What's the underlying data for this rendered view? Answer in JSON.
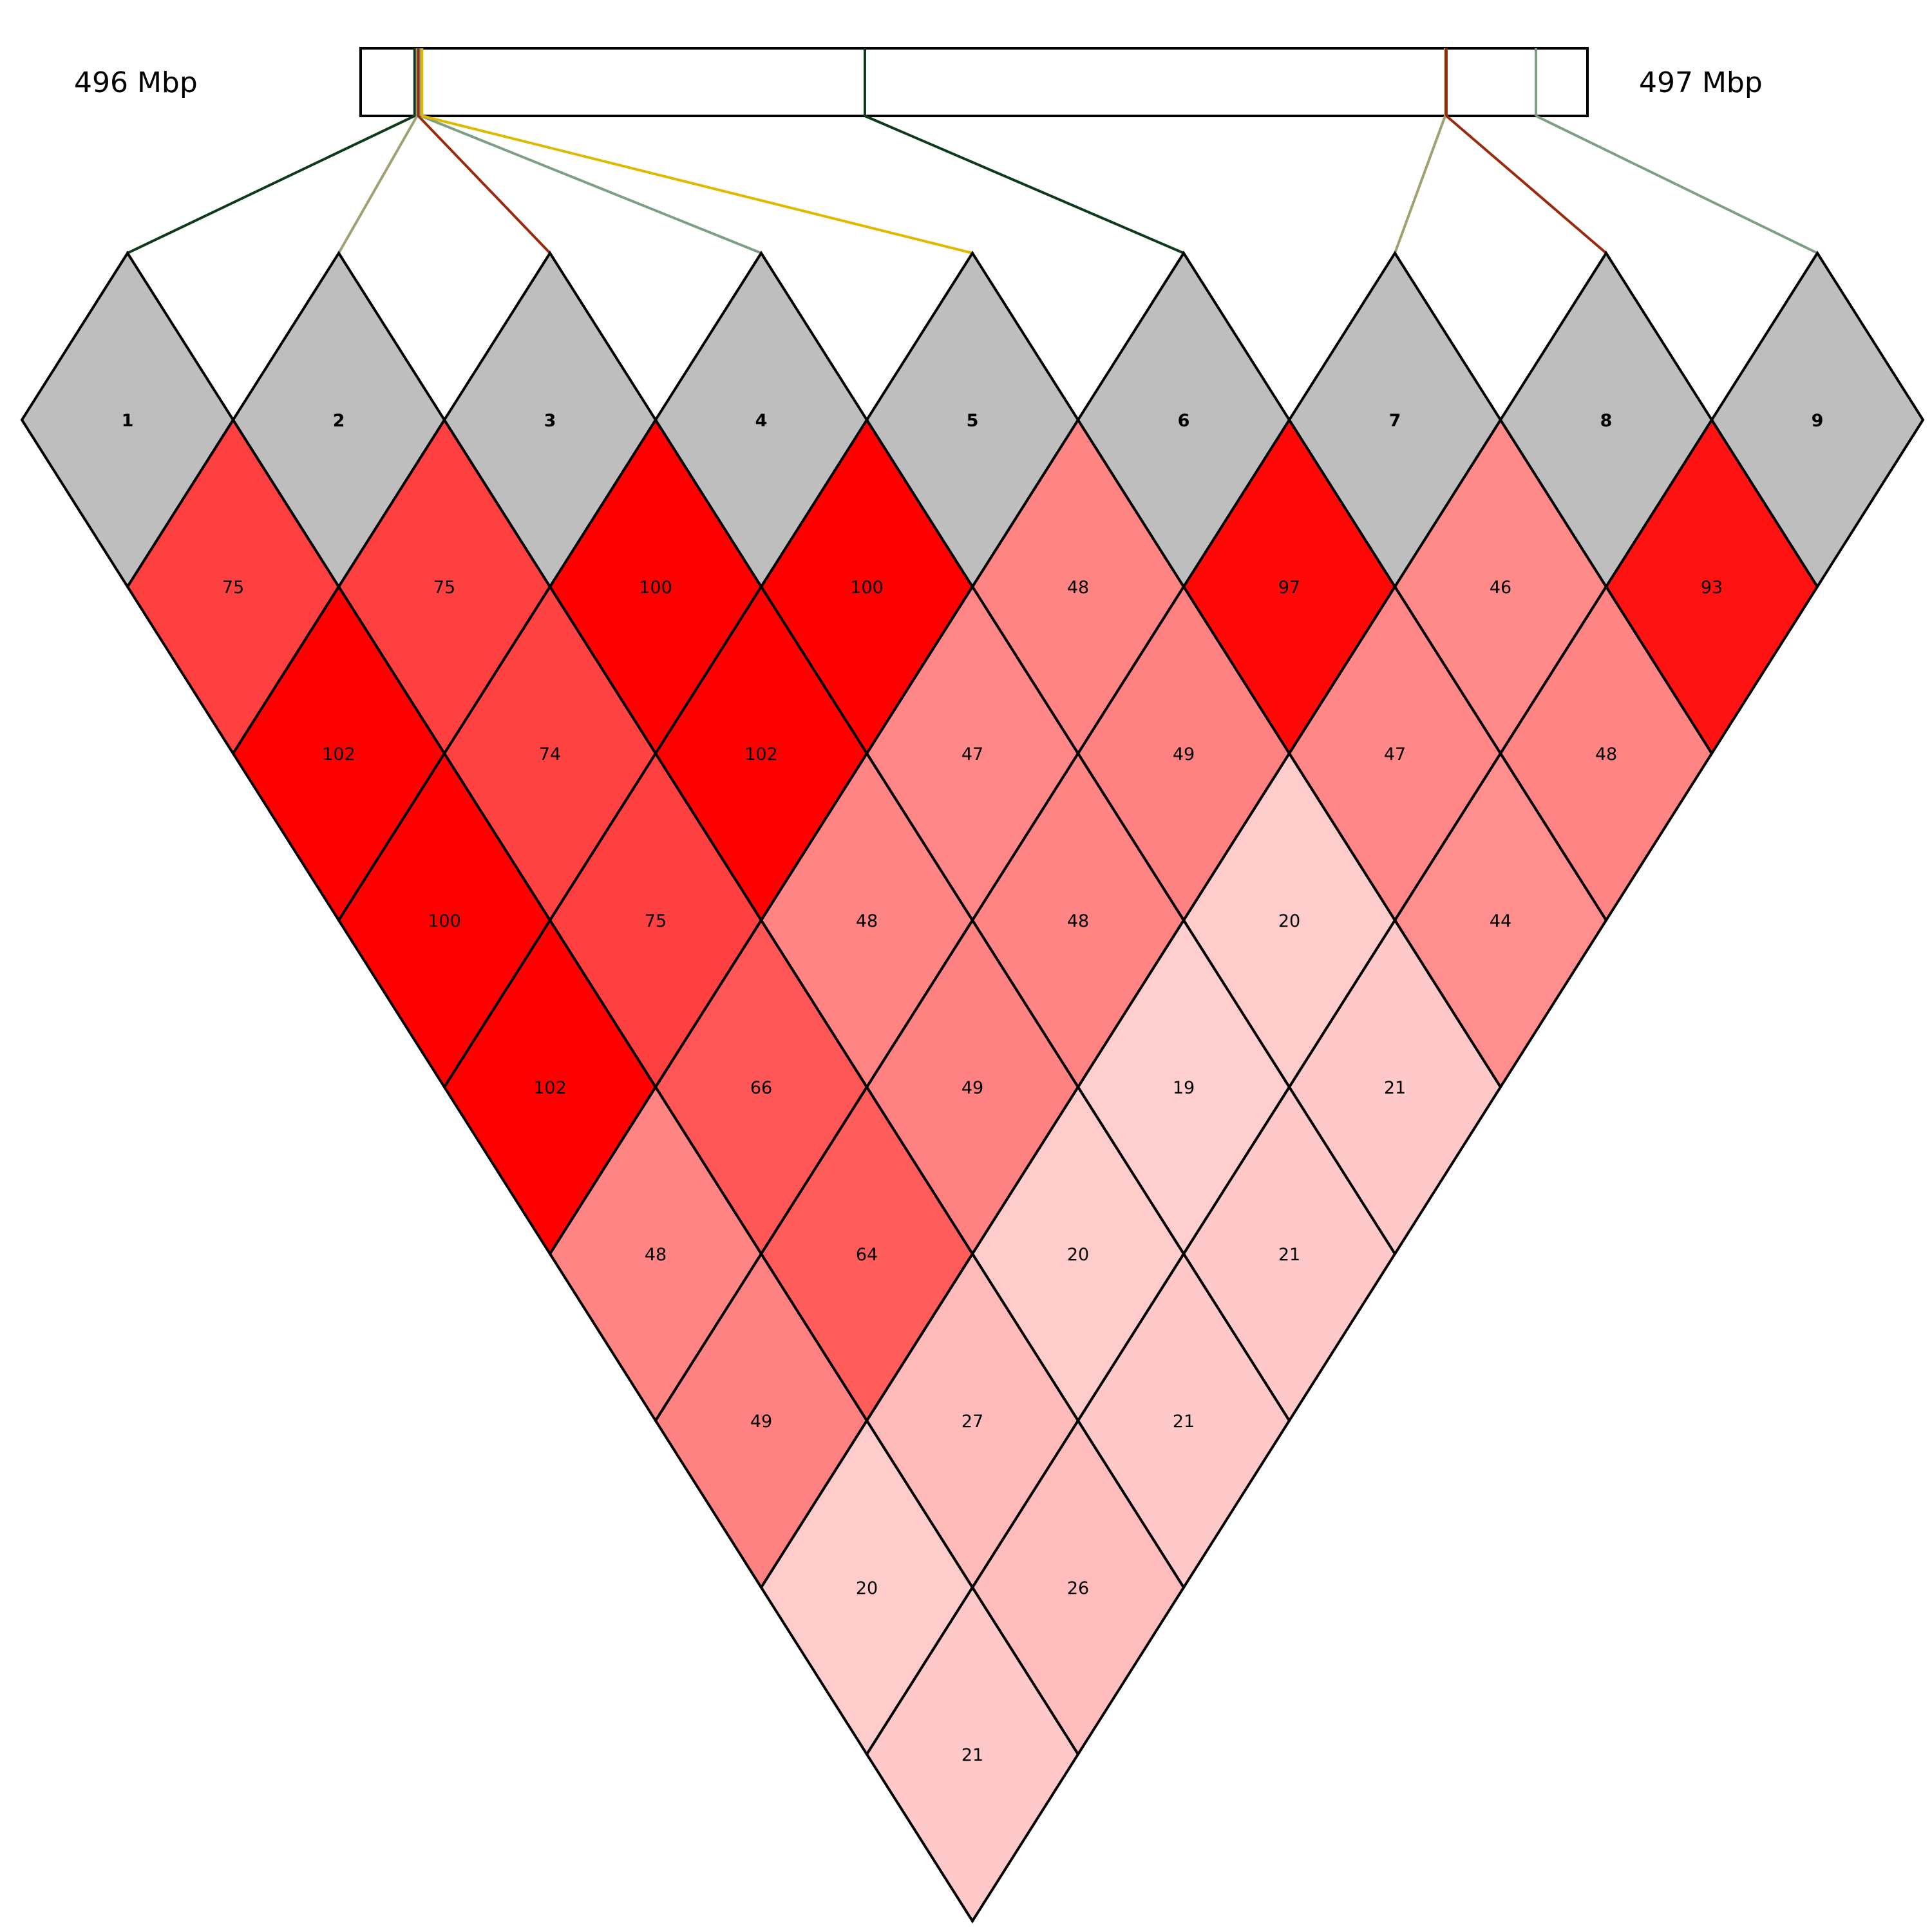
{
  "region": {
    "start_label": "496 Mbp",
    "end_label": "497 Mbp"
  },
  "chart_data": {
    "type": "heatmap",
    "subtype": "linkage-disequilibrium-triangle",
    "title": "",
    "markers": [
      "1",
      "2",
      "3",
      "4",
      "5",
      "6",
      "7",
      "8",
      "9"
    ],
    "marker_positions_relative": [
      0.044,
      0.046,
      0.047,
      0.049,
      0.05,
      0.411,
      0.884,
      0.885,
      0.958
    ],
    "marker_line_colors": [
      "#0d3a19",
      "#a0a070",
      "#9a2a0e",
      "#7f9f84",
      "#e0b800",
      "#0d3a19",
      "#a0a070",
      "#9a2a0e",
      "#7f9f84"
    ],
    "pairs": [
      {
        "i": 1,
        "j": 2,
        "value": 75
      },
      {
        "i": 2,
        "j": 3,
        "value": 75
      },
      {
        "i": 3,
        "j": 4,
        "value": 100
      },
      {
        "i": 4,
        "j": 5,
        "value": 100
      },
      {
        "i": 5,
        "j": 6,
        "value": 48
      },
      {
        "i": 6,
        "j": 7,
        "value": 97
      },
      {
        "i": 7,
        "j": 8,
        "value": 46
      },
      {
        "i": 8,
        "j": 9,
        "value": 93
      },
      {
        "i": 1,
        "j": 3,
        "value": 102
      },
      {
        "i": 2,
        "j": 4,
        "value": 74
      },
      {
        "i": 3,
        "j": 5,
        "value": 102
      },
      {
        "i": 4,
        "j": 6,
        "value": 47
      },
      {
        "i": 5,
        "j": 7,
        "value": 49
      },
      {
        "i": 6,
        "j": 8,
        "value": 47
      },
      {
        "i": 7,
        "j": 9,
        "value": 48
      },
      {
        "i": 1,
        "j": 4,
        "value": 100
      },
      {
        "i": 2,
        "j": 5,
        "value": 75
      },
      {
        "i": 3,
        "j": 6,
        "value": 48
      },
      {
        "i": 4,
        "j": 7,
        "value": 48
      },
      {
        "i": 5,
        "j": 8,
        "value": 20
      },
      {
        "i": 6,
        "j": 9,
        "value": 44
      },
      {
        "i": 1,
        "j": 5,
        "value": 102
      },
      {
        "i": 2,
        "j": 6,
        "value": 66
      },
      {
        "i": 3,
        "j": 7,
        "value": 49
      },
      {
        "i": 4,
        "j": 8,
        "value": 19
      },
      {
        "i": 5,
        "j": 9,
        "value": 21
      },
      {
        "i": 1,
        "j": 6,
        "value": 48
      },
      {
        "i": 2,
        "j": 7,
        "value": 64
      },
      {
        "i": 3,
        "j": 8,
        "value": 20
      },
      {
        "i": 4,
        "j": 9,
        "value": 21
      },
      {
        "i": 1,
        "j": 7,
        "value": 49
      },
      {
        "i": 2,
        "j": 8,
        "value": 27
      },
      {
        "i": 3,
        "j": 9,
        "value": 21
      },
      {
        "i": 1,
        "j": 8,
        "value": 20
      },
      {
        "i": 2,
        "j": 9,
        "value": 26
      },
      {
        "i": 1,
        "j": 9,
        "value": 21
      }
    ],
    "color_scale": {
      "low": "#ffffff",
      "high": "#ff0000",
      "max": 100,
      "marker_fill": "#bebebe"
    }
  }
}
